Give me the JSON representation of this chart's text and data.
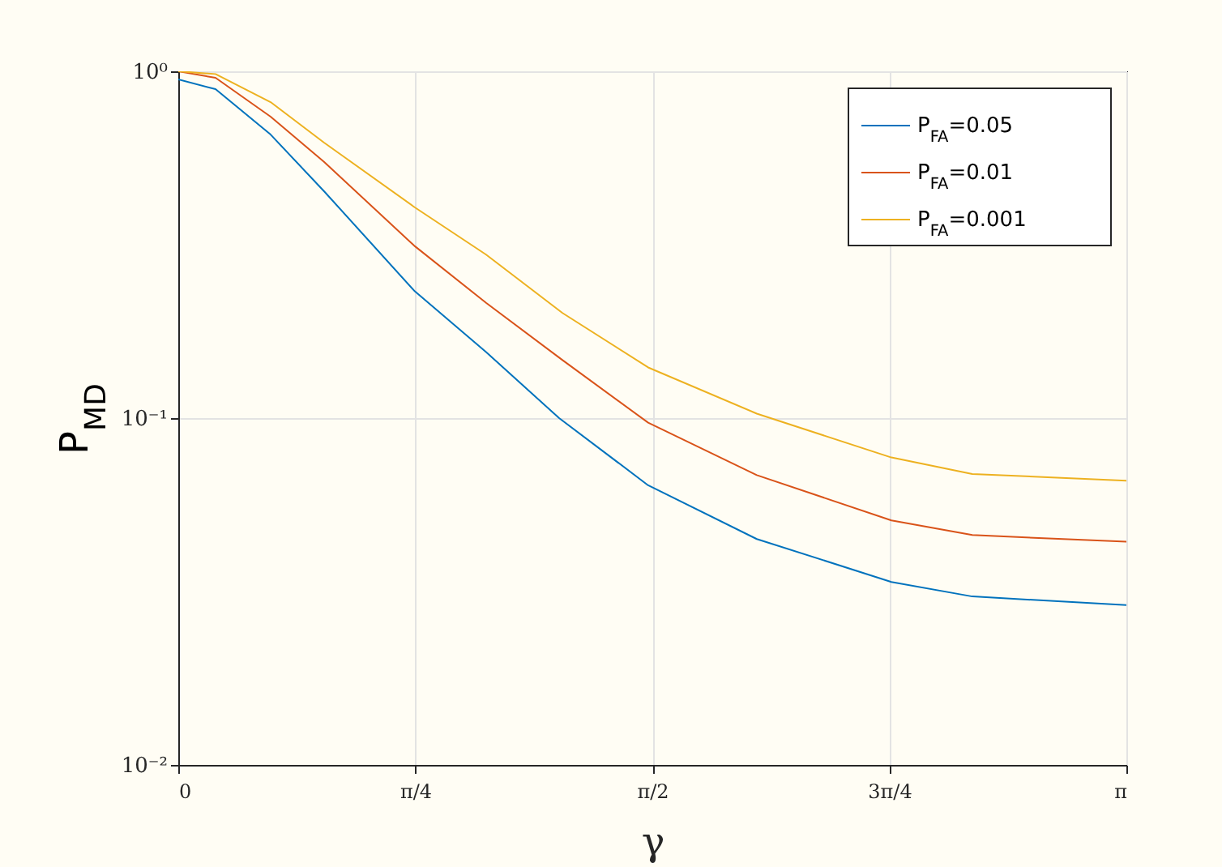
{
  "chart_data": {
    "type": "line",
    "xlabel": "γ",
    "ylabel": "P$_{MD}$",
    "log": "y",
    "grid": true,
    "legend": "top right",
    "line_style": "solid",
    "marker": "none",
    "xlim": [
      0,
      3.1416
    ],
    "xticks": [
      0,
      {
        "value": 0.7854,
        "label": "π/4"
      },
      {
        "value": 1.5708,
        "label": "π/2"
      },
      {
        "value": 2.3562,
        "label": "3π/4"
      },
      {
        "value": 3.1416,
        "label": "π"
      }
    ],
    "ylim": [
      0.01,
      1
    ],
    "yticks": [
      {
        "value": 0.01,
        "label": "10⁻²"
      },
      {
        "value": 0.1,
        "label": "10⁻¹"
      },
      {
        "value": 1,
        "label": "10⁰"
      }
    ],
    "series": [
      {
        "name": "P$_{FA}$=0.05",
        "color": "#0072bd",
        "x": [
          0,
          0.1235,
          0.306,
          0.483,
          0.784,
          1.02,
          1.262,
          1.557,
          1.917,
          2.363,
          2.631,
          3.1416
        ],
        "values": [
          0.948,
          0.888,
          0.657,
          0.451,
          0.232,
          0.155,
          0.1,
          0.064,
          0.0448,
          0.0337,
          0.0306,
          0.0289
        ]
      },
      {
        "name": "P$_{FA}$=0.01",
        "color": "#d95319",
        "x": [
          0,
          0.1235,
          0.306,
          0.483,
          0.784,
          1.02,
          1.273,
          1.557,
          1.917,
          2.363,
          2.631,
          3.1416
        ],
        "values": [
          1.0,
          0.958,
          0.74,
          0.548,
          0.313,
          0.215,
          0.147,
          0.097,
          0.0685,
          0.0507,
          0.046,
          0.044
        ]
      },
      {
        "name": "P$_{FA}$=0.001",
        "color": "#edb120",
        "x": [
          0,
          0.1235,
          0.306,
          0.483,
          0.784,
          1.02,
          1.273,
          1.557,
          1.917,
          2.363,
          2.631,
          3.1416
        ],
        "values": [
          1.0,
          0.982,
          0.815,
          0.623,
          0.405,
          0.296,
          0.201,
          0.14,
          0.103,
          0.077,
          0.069,
          0.066
        ]
      }
    ]
  }
}
